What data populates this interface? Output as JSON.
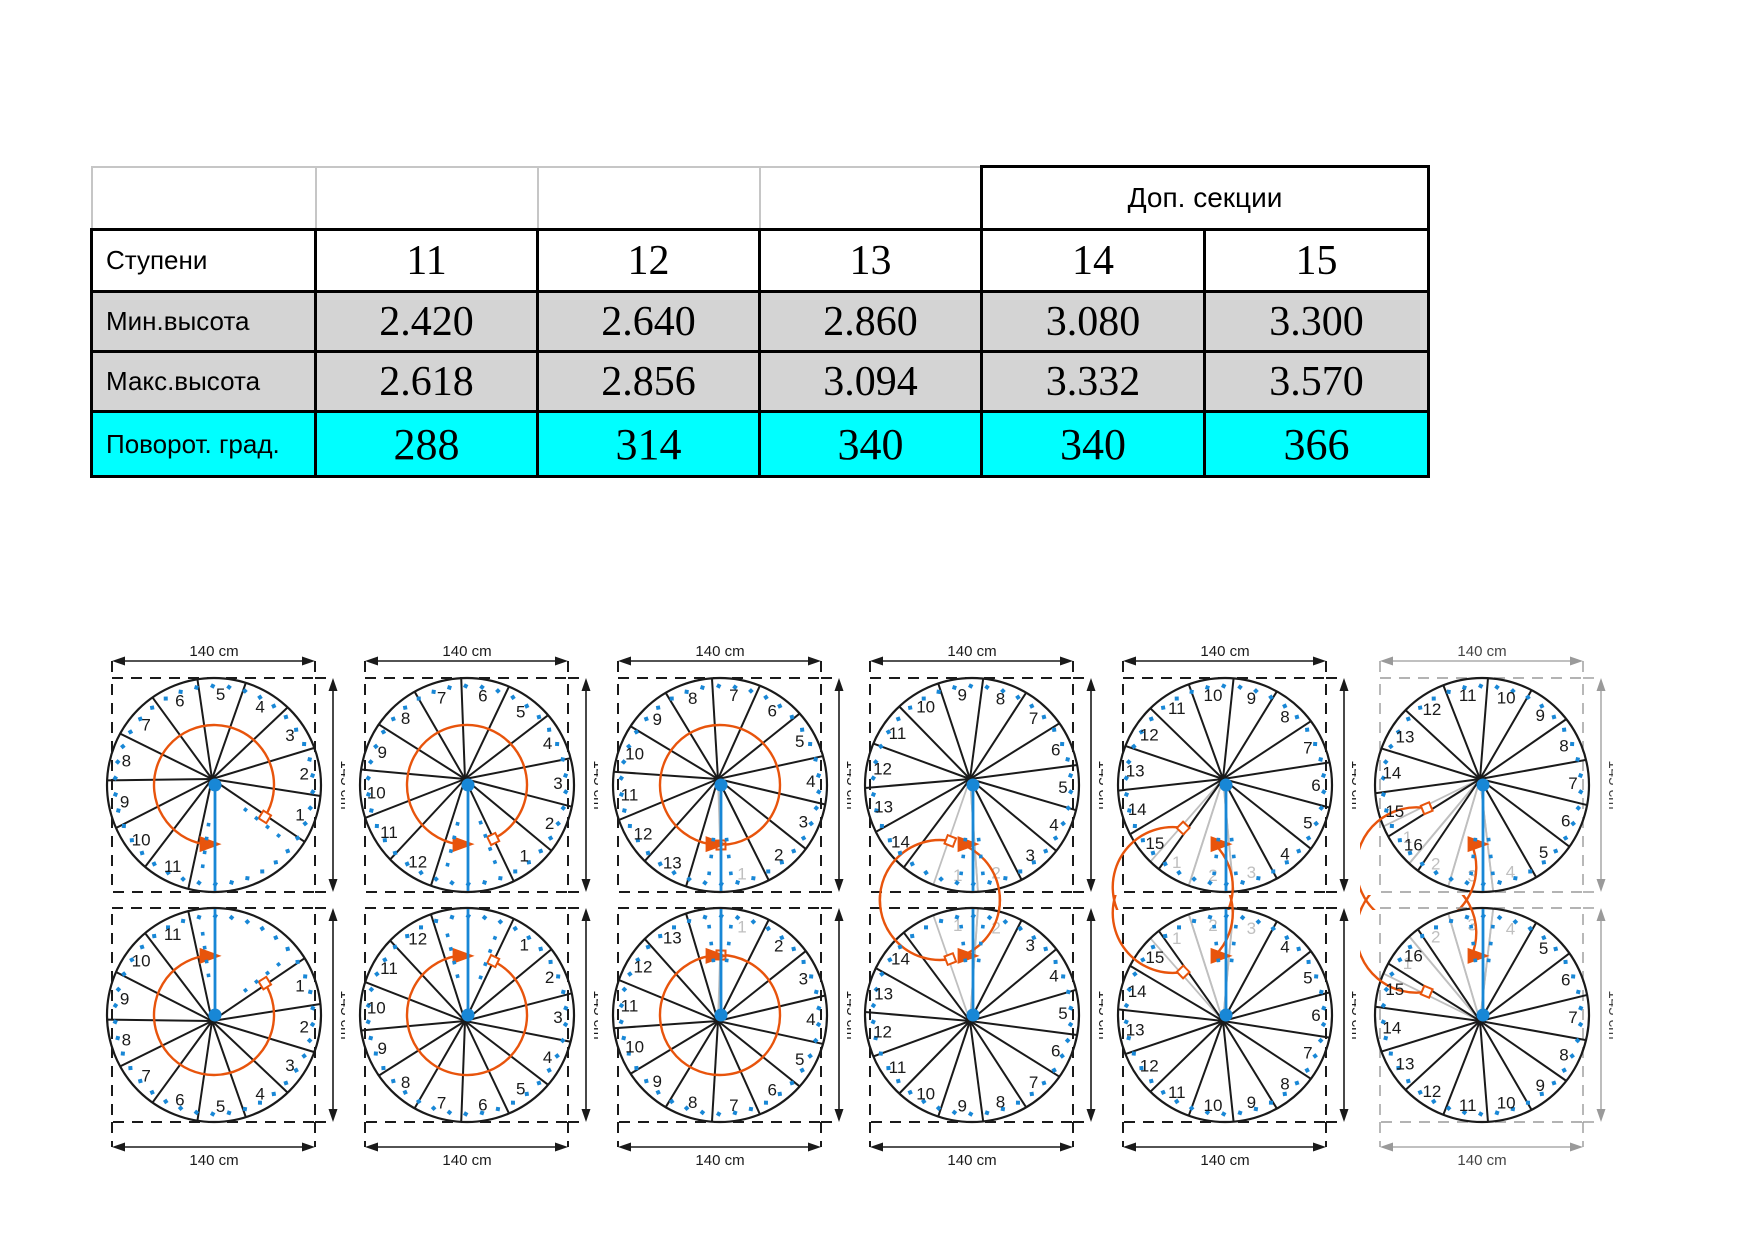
{
  "table": {
    "dop_header": "Доп. секции",
    "rows": [
      {
        "label": "Ступени",
        "values": [
          "11",
          "12",
          "13",
          "14",
          "15"
        ]
      },
      {
        "label": "Мин.высота",
        "values": [
          "2.420",
          "2.640",
          "2.860",
          "3.080",
          "3.300"
        ]
      },
      {
        "label": "Макс.высота",
        "values": [
          "2.618",
          "2.856",
          "3.094",
          "3.332",
          "3.570"
        ]
      },
      {
        "label": "Поворот. град.",
        "values": [
          "288",
          "314",
          "340",
          "340",
          "366"
        ]
      }
    ],
    "colors": {
      "highlight": "#00ffff",
      "shaded": "#d4d4d4",
      "border": "#000000",
      "light_border": "#c6c6c6"
    }
  },
  "diagrams": {
    "dim_width_label": "140 cm",
    "dim_height_label": "145 cm",
    "colors": {
      "line": "#1a1a1a",
      "orange": "#e8540c",
      "blue": "#1887d6",
      "ghost": "#bfbfbf",
      "gray_dim": "#9a9a9a"
    },
    "columns": [
      {
        "steps": 11,
        "ghost_steps": 0,
        "start_angle": 19,
        "wedge_angle": 26.2,
        "gap_dots": true
      },
      {
        "steps": 12,
        "ghost_steps": 0,
        "start_angle": 51,
        "wedge_angle": 26.2,
        "gap_dots": true
      },
      {
        "steps": 13,
        "ghost_steps": 1,
        "start_angle": 76,
        "wedge_angle": 26.2,
        "gap_dots": false
      },
      {
        "steps": 14,
        "ghost_steps": 2,
        "start_angle": 99,
        "wedge_angle": 24.4,
        "gap_dots": false
      },
      {
        "steps": 15,
        "ghost_steps": 3,
        "start_angle": 122,
        "wedge_angle": 24.4,
        "gap_dots": false
      },
      {
        "steps": 16,
        "ghost_steps": 4,
        "start_angle": 145,
        "wedge_angle": 24.4,
        "gap_dots": false,
        "gray_dims": true
      }
    ],
    "rows": [
      {
        "name": "plan-top",
        "mirror": false
      },
      {
        "name": "plan-bottom",
        "mirror": true
      }
    ]
  }
}
